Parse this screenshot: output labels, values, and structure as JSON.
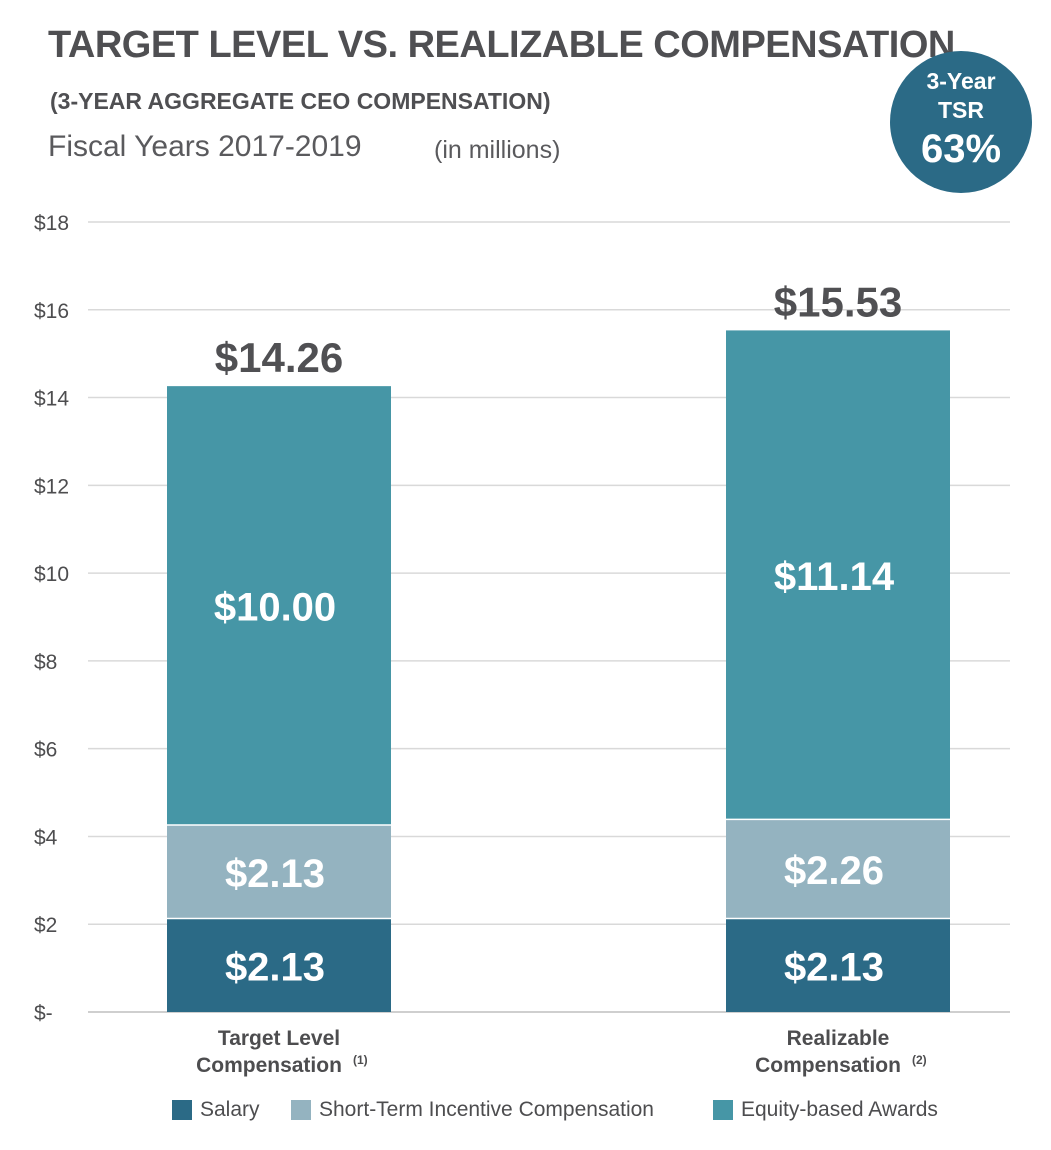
{
  "header": {
    "title": "TARGET LEVEL VS. REALIZABLE COMPENSATION",
    "subtitle": "(3-YEAR AGGREGATE CEO COMPENSATION)",
    "fiscal_years": "Fiscal Years  2017-2019",
    "units": "(in millions)"
  },
  "badge": {
    "line1": "3-Year",
    "line2": "TSR",
    "value": "63%"
  },
  "colors": {
    "salary": "#2b6a86",
    "sti": "#94b3c0",
    "equity": "#4696a6",
    "grid": "#d9d9d9",
    "text": "#4d4d4f"
  },
  "chart_data": {
    "type": "bar",
    "stacked": true,
    "title": "TARGET LEVEL VS. REALIZABLE COMPENSATION",
    "ylabel": "",
    "xlabel": "",
    "ylim": [
      0,
      18
    ],
    "yticks": [
      0,
      2,
      4,
      6,
      8,
      10,
      12,
      14,
      16,
      18
    ],
    "ytick_labels": [
      "$-",
      "$2",
      "$4",
      "$6",
      "$8",
      "$10",
      "$12",
      "$14",
      "$16",
      "$18"
    ],
    "grid": true,
    "legend_position": "bottom",
    "categories": [
      {
        "line1": "Target Level",
        "line2": "Compensation",
        "footnote": "(1)"
      },
      {
        "line1": "Realizable",
        "line2": "Compensation",
        "footnote": "(2)"
      }
    ],
    "series": [
      {
        "name": "Salary",
        "key": "salary",
        "values": [
          2.13,
          2.13
        ],
        "labels": [
          "$2.13",
          "$2.13"
        ]
      },
      {
        "name": "Short-Term Incentive Compensation",
        "key": "sti",
        "values": [
          2.13,
          2.26
        ],
        "labels": [
          "$2.13",
          "$2.26"
        ]
      },
      {
        "name": "Equity-based Awards",
        "key": "equity",
        "values": [
          10.0,
          11.14
        ],
        "labels": [
          "$10.00",
          "$11.14"
        ]
      }
    ],
    "totals": [
      14.26,
      15.53
    ],
    "total_labels": [
      "$14.26",
      "$15.53"
    ]
  }
}
